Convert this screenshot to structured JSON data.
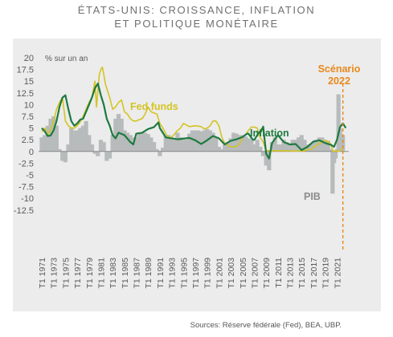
{
  "title": {
    "line1": "ÉTATS-UNIS: CROISSANCE, INFLATION",
    "line2": "ET POLITIQUE MONÉTAIRE"
  },
  "source": "Sources: Réserve fédérale (Fed), BEA, UBP.",
  "colors": {
    "panel": "#ececec",
    "gdp": "#b7bbbb",
    "fed": "#d4c423",
    "inflation": "#1f7a3f",
    "scenario": "#e8891c",
    "text": "#5a5a5a"
  },
  "chart_data": {
    "type": "line",
    "ylabel": "% sur un an",
    "ylim": [
      -12.5,
      20
    ],
    "yticks": [
      20,
      17.5,
      15,
      12.5,
      10,
      7.5,
      5,
      2.5,
      0,
      -2.5,
      -5,
      -7.5,
      -10,
      -12.5
    ],
    "ytick_labels": [
      "20",
      "17.5",
      "15",
      "12.5",
      "10",
      "7.5",
      "5",
      "2.5",
      "0",
      "-2.5",
      "-5",
      "-7.5",
      "-10",
      "-12.5"
    ],
    "xlim": [
      1971,
      2023
    ],
    "xtick_labels": [
      "T1 1971",
      "T1 1973",
      "T1 1975",
      "T1 1977",
      "T1 1979",
      "T1 1981",
      "T1 1983",
      "T1 1985",
      "T1 1987",
      "T1 1989",
      "T1 1991",
      "T1 1993",
      "T1 1995",
      "T1 1997",
      "T1 1999",
      "T1 2001",
      "T1 2003",
      "T1 2005",
      "T1 2007",
      "T1 2009",
      "T1 2011",
      "T1 2013",
      "T1 2015",
      "T1 2017",
      "T1 2019",
      "T1 2021"
    ],
    "xtick_years": [
      1971,
      1973,
      1975,
      1977,
      1979,
      1981,
      1983,
      1985,
      1987,
      1989,
      1991,
      1993,
      1995,
      1997,
      1999,
      2001,
      2003,
      2005,
      2007,
      2009,
      2011,
      2013,
      2015,
      2017,
      2019,
      2021
    ],
    "series": [
      {
        "name": "Fed funds",
        "kind": "line",
        "x": [
          1971,
          1971.5,
          1972,
          1972.5,
          1973,
          1973.5,
          1974,
          1974.5,
          1975,
          1975.5,
          1976,
          1976.5,
          1977,
          1977.5,
          1978,
          1978.5,
          1979,
          1979.5,
          1980,
          1980.25,
          1980.5,
          1980.75,
          1981,
          1981.25,
          1981.5,
          1981.75,
          1982,
          1982.5,
          1983,
          1983.5,
          1984,
          1984.5,
          1985,
          1985.5,
          1986,
          1986.5,
          1987,
          1987.5,
          1988,
          1988.5,
          1989,
          1989.5,
          1990,
          1990.5,
          1991,
          1991.5,
          1992,
          1992.5,
          1993,
          1994,
          1994.5,
          1995,
          1996,
          1997,
          1998,
          1998.5,
          1999,
          1999.5,
          2000,
          2000.5,
          2001,
          2001.5,
          2002,
          2003,
          2003.5,
          2004,
          2004.5,
          2005,
          2005.5,
          2006,
          2006.5,
          2007,
          2007.5,
          2008,
          2008.5,
          2009,
          2010,
          2012,
          2014,
          2015.5,
          2016,
          2016.5,
          2017,
          2017.5,
          2018,
          2018.5,
          2019,
          2019.5,
          2020,
          2020.25,
          2021,
          2021.5,
          2022
        ],
        "y": [
          4.2,
          5.0,
          3.5,
          4.5,
          6.5,
          9.0,
          10.5,
          11.5,
          6.5,
          5.5,
          5.0,
          5.0,
          5.5,
          6.3,
          7.5,
          9.0,
          10.5,
          11.5,
          15.0,
          9.5,
          13.0,
          16.5,
          17.5,
          18.0,
          16.5,
          14.5,
          13.5,
          11.5,
          9.0,
          9.5,
          10.5,
          11.0,
          8.5,
          8.0,
          7.0,
          6.5,
          6.5,
          6.8,
          7.0,
          8.0,
          9.5,
          8.5,
          8.2,
          8.0,
          6.0,
          5.0,
          3.8,
          3.0,
          3.0,
          4.5,
          5.0,
          6.0,
          5.3,
          5.5,
          5.3,
          4.8,
          5.0,
          5.5,
          6.5,
          6.5,
          5.5,
          3.0,
          1.7,
          1.0,
          1.0,
          1.1,
          1.7,
          3.0,
          3.5,
          4.5,
          5.2,
          5.2,
          5.0,
          3.0,
          2.0,
          0.2,
          0.15,
          0.15,
          0.1,
          0.15,
          0.4,
          0.4,
          0.9,
          1.2,
          1.7,
          2.0,
          2.4,
          2.1,
          1.5,
          0.1,
          0.1,
          0.1,
          0.8
        ]
      },
      {
        "name": "Inflation",
        "kind": "line",
        "x": [
          1971,
          1971.5,
          1972,
          1972.5,
          1973,
          1973.5,
          1974,
          1974.5,
          1975,
          1975.5,
          1976,
          1976.5,
          1977,
          1977.5,
          1978,
          1978.5,
          1979,
          1979.5,
          1980,
          1980.5,
          1981,
          1981.5,
          1982,
          1982.5,
          1983,
          1983.5,
          1984,
          1985,
          1986,
          1986.5,
          1987,
          1988,
          1989,
          1990,
          1990.75,
          1991,
          1991.5,
          1992,
          1994,
          1996,
          1997,
          1998,
          1999,
          2000,
          2001,
          2001.75,
          2002,
          2003,
          2004,
          2005,
          2005.75,
          2006,
          2006.75,
          2007,
          2007.75,
          2008,
          2008.5,
          2009,
          2009.5,
          2010,
          2011,
          2012,
          2013,
          2014,
          2015,
          2016,
          2017,
          2018,
          2019,
          2020,
          2020.5,
          2021,
          2021.5,
          2022,
          2022.5
        ],
        "y": [
          5.0,
          4.3,
          3.3,
          3.4,
          4.5,
          6.5,
          9.5,
          11.5,
          12.0,
          9.0,
          6.5,
          5.5,
          6.0,
          6.8,
          7.0,
          8.5,
          10.0,
          11.5,
          13.5,
          14.5,
          12.0,
          10.0,
          7.0,
          5.5,
          3.5,
          2.8,
          4.0,
          3.5,
          2.0,
          1.5,
          3.8,
          4.0,
          4.8,
          5.2,
          6.2,
          5.0,
          4.0,
          3.0,
          2.6,
          2.9,
          2.4,
          1.6,
          2.4,
          3.3,
          2.8,
          1.8,
          1.5,
          2.3,
          2.6,
          3.1,
          3.8,
          3.8,
          2.5,
          2.5,
          4.0,
          4.0,
          5.3,
          -0.5,
          -1.5,
          1.8,
          3.5,
          2.0,
          1.5,
          1.6,
          0.3,
          1.0,
          2.1,
          2.4,
          1.8,
          1.4,
          1.0,
          2.5,
          5.2,
          6.0,
          5.0
        ]
      },
      {
        "name": "PIB",
        "kind": "bar",
        "x": [
          1971,
          1971.5,
          1972,
          1972.5,
          1973,
          1973.5,
          1974,
          1974.5,
          1975,
          1975.5,
          1976,
          1976.5,
          1977,
          1977.5,
          1978,
          1978.5,
          1979,
          1979.5,
          1980,
          1980.5,
          1981,
          1981.5,
          1982,
          1982.5,
          1983,
          1983.5,
          1984,
          1984.5,
          1985,
          1985.5,
          1986,
          1986.5,
          1987,
          1987.5,
          1988,
          1988.5,
          1989,
          1989.5,
          1990,
          1990.5,
          1991,
          1991.5,
          1992,
          1992.5,
          1993,
          1993.5,
          1994,
          1994.5,
          1995,
          1995.5,
          1996,
          1996.5,
          1997,
          1997.5,
          1998,
          1998.5,
          1999,
          1999.5,
          2000,
          2000.5,
          2001,
          2001.5,
          2002,
          2002.5,
          2003,
          2003.5,
          2004,
          2004.5,
          2005,
          2005.5,
          2006,
          2006.5,
          2007,
          2007.5,
          2008,
          2008.5,
          2009,
          2009.5,
          2010,
          2010.5,
          2011,
          2011.5,
          2012,
          2012.5,
          2013,
          2013.5,
          2014,
          2014.5,
          2015,
          2015.5,
          2016,
          2016.5,
          2017,
          2017.5,
          2018,
          2018.5,
          2019,
          2019.5,
          2020,
          2020.25,
          2020.5,
          2020.75,
          2021,
          2021.25,
          2021.5,
          2022
        ],
        "y": [
          3.0,
          3.5,
          5.5,
          7.0,
          7.5,
          5.5,
          0.5,
          -2.0,
          -2.3,
          1.5,
          5.0,
          4.5,
          4.5,
          5.0,
          5.5,
          6.5,
          3.5,
          1.5,
          -0.5,
          -1.0,
          2.5,
          2.0,
          -2.0,
          -1.5,
          3.5,
          7.0,
          8.0,
          7.0,
          4.5,
          4.0,
          3.5,
          3.0,
          3.0,
          4.0,
          4.0,
          4.0,
          3.7,
          3.0,
          2.0,
          0.5,
          -1.0,
          0.8,
          3.5,
          3.5,
          2.8,
          2.5,
          4.0,
          3.0,
          2.5,
          2.5,
          3.8,
          4.5,
          4.5,
          4.5,
          4.3,
          4.5,
          4.8,
          4.5,
          4.0,
          3.0,
          1.0,
          0.5,
          1.5,
          2.0,
          2.8,
          4.0,
          3.8,
          3.5,
          3.5,
          3.2,
          2.8,
          2.5,
          1.5,
          2.5,
          1.0,
          -1.0,
          -3.0,
          -4.0,
          2.0,
          3.0,
          1.5,
          1.5,
          2.5,
          2.0,
          1.5,
          2.5,
          2.5,
          3.0,
          3.5,
          2.5,
          1.5,
          1.5,
          2.0,
          2.5,
          3.0,
          3.0,
          2.5,
          2.3,
          0.5,
          -9.0,
          -2.5,
          -1.5,
          0.5,
          12.2,
          5.0,
          3.5
        ]
      }
    ],
    "annotations": [
      {
        "text": "Fed funds",
        "series": "Fed funds"
      },
      {
        "text": "Inflation",
        "series": "Inflation"
      },
      {
        "text": "PIB",
        "series": "PIB"
      },
      {
        "text": "Scénario",
        "x": 2022
      },
      {
        "text": "2022",
        "x": 2022
      }
    ],
    "scenario_x": 2022,
    "grid": false,
    "legend": "none"
  }
}
